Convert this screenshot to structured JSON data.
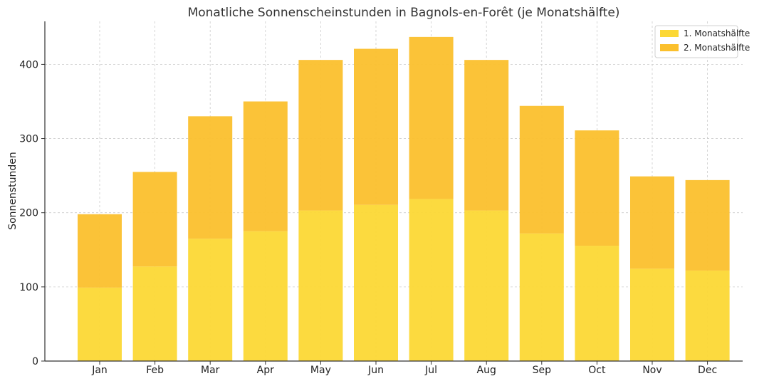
{
  "chart_data": {
    "type": "bar",
    "stacked": true,
    "title": "Monatliche Sonnenscheinstunden in Bagnols-en-Forêt (je Monatshälfte)",
    "xlabel": "",
    "ylabel": "Sonnenstunden",
    "categories": [
      "Jan",
      "Feb",
      "Mar",
      "Apr",
      "May",
      "Jun",
      "Jul",
      "Aug",
      "Sep",
      "Oct",
      "Nov",
      "Dec"
    ],
    "series": [
      {
        "name": "1. Monatshälfte",
        "color": "#FCD835",
        "values": [
          99,
          127.5,
          165,
          175,
          203,
          210.5,
          218.5,
          203,
          172,
          155.5,
          124.5,
          122
        ]
      },
      {
        "name": "2. Monatshälfte",
        "color": "#FBC02D",
        "values": [
          99,
          127.5,
          165,
          175,
          203,
          210.5,
          218.5,
          203,
          172,
          155.5,
          124.5,
          122
        ]
      }
    ],
    "ylim": [
      0,
      458
    ],
    "yticks": [
      0,
      100,
      200,
      300,
      400
    ],
    "grid": true,
    "legend_position": "top-right"
  }
}
